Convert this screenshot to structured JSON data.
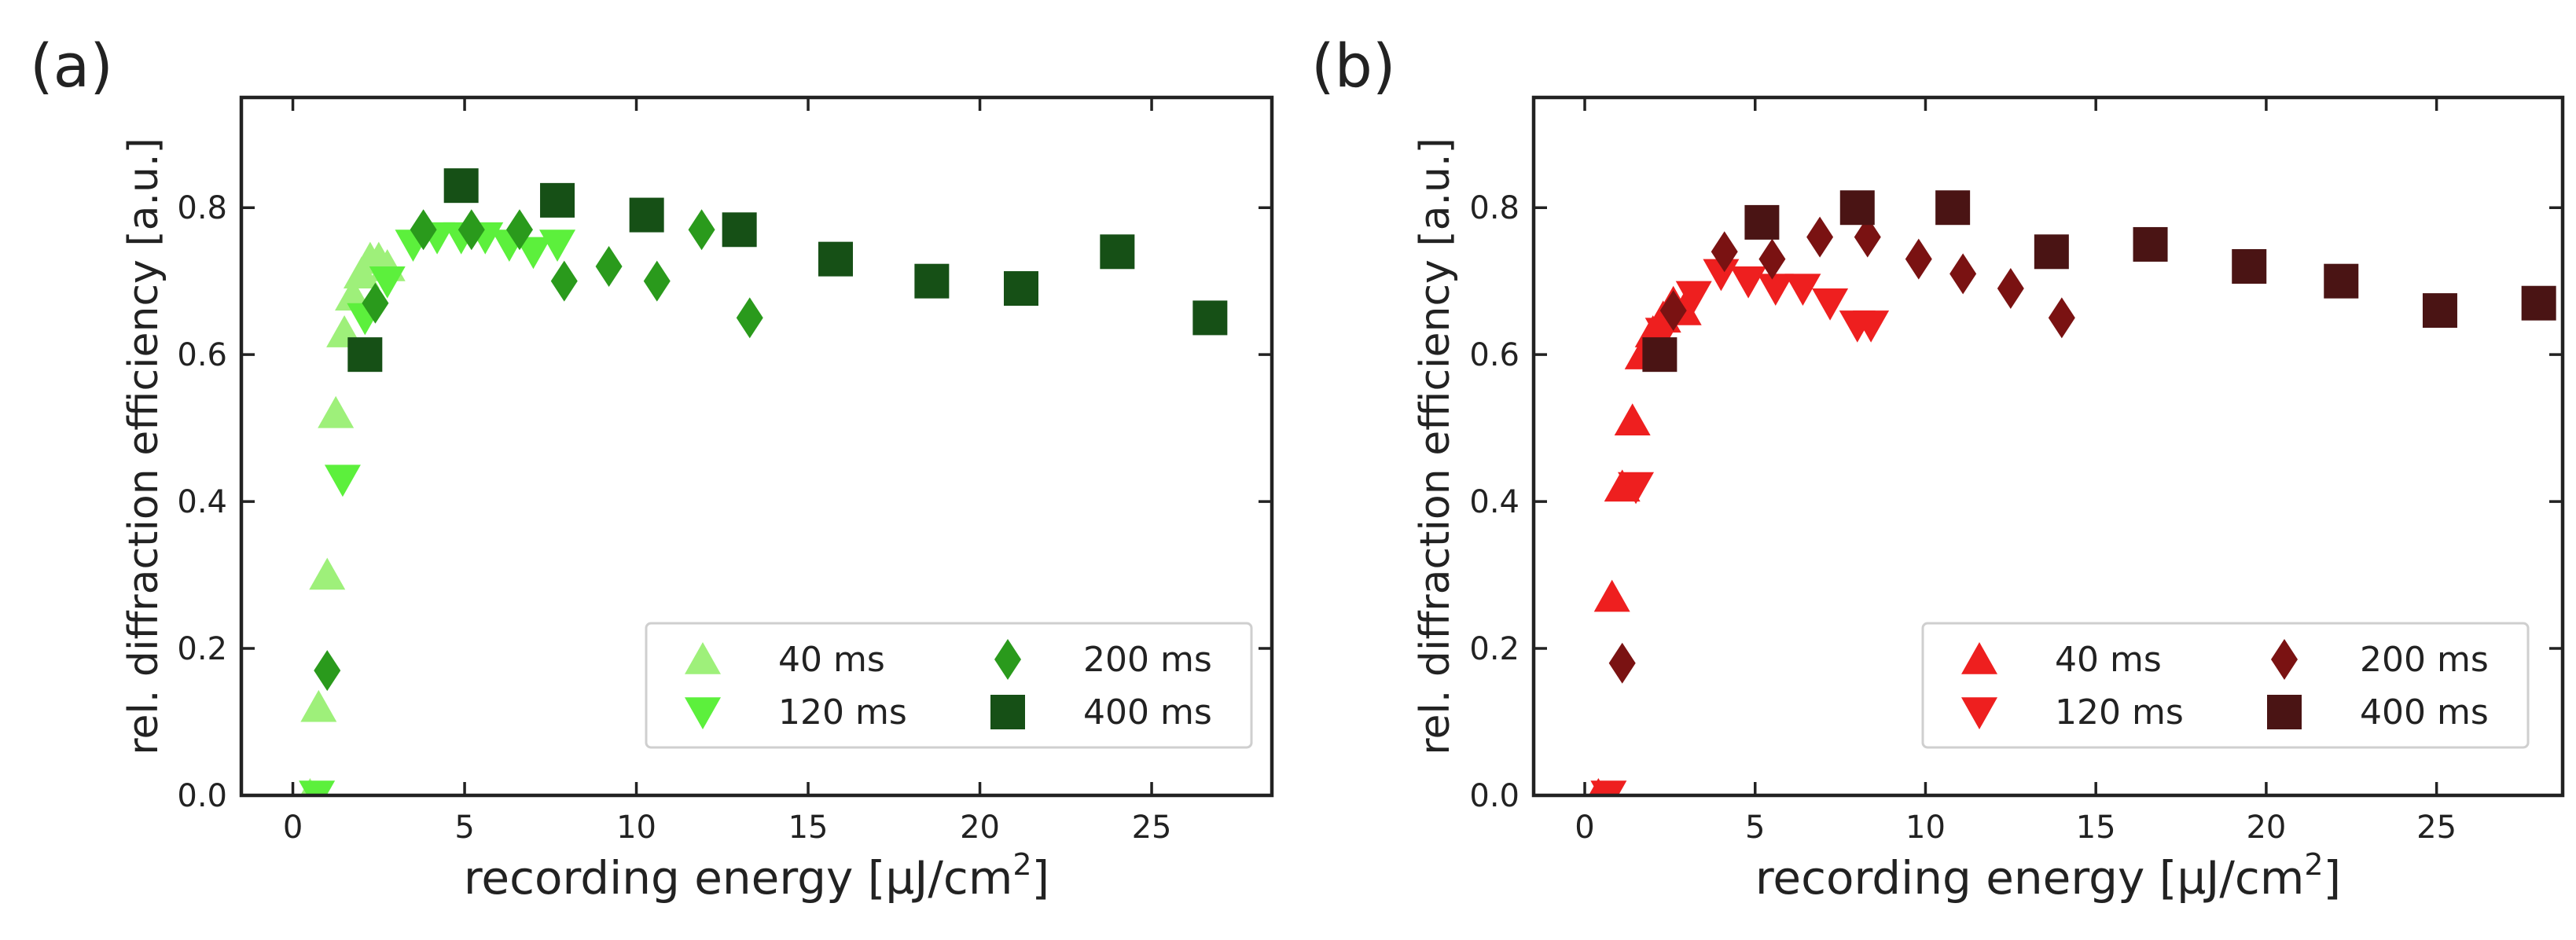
{
  "chart_data": [
    {
      "type": "scatter",
      "panel_label": "(a)",
      "xlabel": "recording energy [µJ/cm",
      "xlabel_sup": "2",
      "xlabel_close": "]",
      "ylabel": "rel. diffraction efficiency [a.u.]",
      "xlim": [
        -1.5,
        28.5
      ],
      "ylim": [
        0,
        0.95
      ],
      "xticks": [
        0,
        5,
        10,
        15,
        20,
        25
      ],
      "xtick_labels": [
        "0",
        "5",
        "10",
        "15",
        "20",
        "25"
      ],
      "yticks": [
        0,
        0.2,
        0.4,
        0.6,
        0.8
      ],
      "ytick_labels": [
        "0.0",
        "0.2",
        "0.4",
        "0.6",
        "0.8"
      ],
      "legend_position": "lower-right",
      "series": [
        {
          "name": "40 ms",
          "marker": "triangle-up",
          "color": "#9ef07a",
          "x": [
            0.5,
            0.75,
            1.0,
            1.25,
            1.5,
            1.75,
            2.0,
            2.25,
            2.5,
            2.75
          ],
          "y": [
            0.0,
            0.12,
            0.3,
            0.52,
            0.63,
            0.68,
            0.71,
            0.73,
            0.73,
            0.72
          ]
        },
        {
          "name": "120 ms",
          "marker": "triangle-down",
          "color": "#5cf03c",
          "x": [
            0.7,
            1.45,
            2.1,
            2.75,
            3.5,
            4.2,
            4.9,
            5.6,
            6.3,
            7.0,
            7.7
          ],
          "y": [
            0.0,
            0.43,
            0.65,
            0.7,
            0.75,
            0.76,
            0.76,
            0.76,
            0.75,
            0.74,
            0.75
          ]
        },
        {
          "name": "200 ms",
          "marker": "diamond",
          "color": "#2a9a1c",
          "x": [
            1.0,
            2.4,
            3.8,
            5.2,
            6.6,
            7.9,
            9.2,
            10.6,
            11.9,
            13.3
          ],
          "y": [
            0.17,
            0.67,
            0.77,
            0.77,
            0.77,
            0.7,
            0.72,
            0.7,
            0.77,
            0.65
          ]
        },
        {
          "name": "400 ms",
          "marker": "square",
          "color": "#165016",
          "x": [
            2.1,
            4.9,
            7.7,
            10.3,
            13.0,
            15.8,
            18.6,
            21.2,
            24.0,
            26.7
          ],
          "y": [
            0.6,
            0.83,
            0.81,
            0.79,
            0.77,
            0.73,
            0.7,
            0.69,
            0.74,
            0.65
          ]
        }
      ]
    },
    {
      "type": "scatter",
      "panel_label": "(b)",
      "xlabel": "recording energy [µJ/cm",
      "xlabel_sup": "2",
      "xlabel_close": "]",
      "ylabel": "rel. diffraction efficiency [a.u.]",
      "xlim": [
        -1.5,
        28.7
      ],
      "ylim": [
        0,
        0.95
      ],
      "xticks": [
        0,
        5,
        10,
        15,
        20,
        25
      ],
      "xtick_labels": [
        "0",
        "5",
        "10",
        "15",
        "20",
        "25"
      ],
      "yticks": [
        0,
        0.2,
        0.4,
        0.6,
        0.8
      ],
      "ytick_labels": [
        "0.0",
        "0.2",
        "0.4",
        "0.6",
        "0.8"
      ],
      "legend_position": "lower-right",
      "series": [
        {
          "name": "40 ms",
          "marker": "triangle-up",
          "color": "#ee1f1f",
          "x": [
            0.4,
            0.8,
            1.1,
            1.4,
            1.7,
            2.0,
            2.3,
            2.6,
            2.9
          ],
          "y": [
            0.0,
            0.27,
            0.42,
            0.51,
            0.6,
            0.63,
            0.65,
            0.67,
            0.66
          ]
        },
        {
          "name": "120 ms",
          "marker": "triangle-down",
          "color": "#ee1f1f",
          "x": [
            0.7,
            1.5,
            2.3,
            3.2,
            4.0,
            4.8,
            5.6,
            6.4,
            7.2,
            8.0,
            8.4
          ],
          "y": [
            0.0,
            0.42,
            0.63,
            0.68,
            0.71,
            0.7,
            0.69,
            0.69,
            0.67,
            0.64,
            0.64
          ]
        },
        {
          "name": "200 ms",
          "marker": "diamond",
          "color": "#7a1212",
          "x": [
            1.1,
            2.6,
            4.1,
            5.5,
            6.9,
            8.3,
            9.8,
            11.1,
            12.5,
            14.0
          ],
          "y": [
            0.18,
            0.66,
            0.74,
            0.73,
            0.76,
            0.76,
            0.73,
            0.71,
            0.69,
            0.65
          ]
        },
        {
          "name": "400 ms",
          "marker": "square",
          "color": "#4a1414",
          "x": [
            2.2,
            5.2,
            8.0,
            10.8,
            13.7,
            16.6,
            19.5,
            22.2,
            25.1,
            28.0
          ],
          "y": [
            0.6,
            0.78,
            0.8,
            0.8,
            0.74,
            0.75,
            0.72,
            0.7,
            0.66,
            0.67
          ]
        }
      ]
    }
  ]
}
